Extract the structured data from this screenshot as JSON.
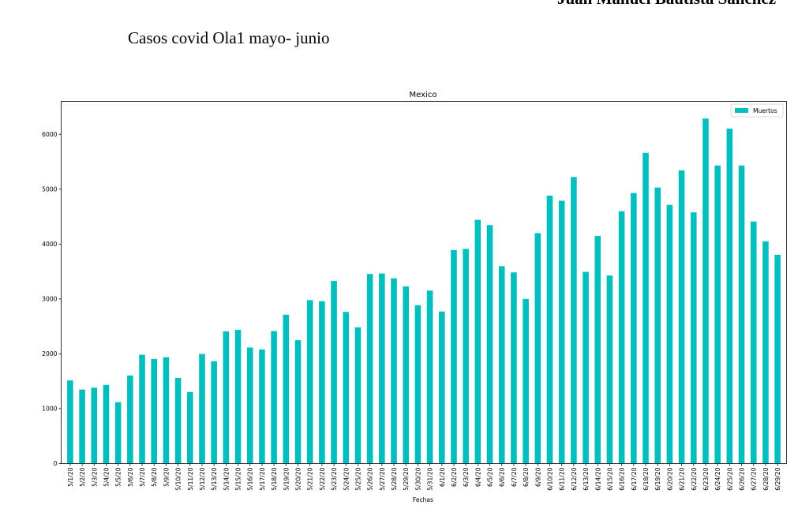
{
  "header": {
    "author": "Juan Manuel Bautista Sánchez",
    "doc_title": "Casos covid Ola1 mayo- junio"
  },
  "colors": {
    "bar": "#00bfbf",
    "axis": "#000000",
    "legend_border": "#cccccc"
  },
  "chart_data": {
    "type": "bar",
    "title": "Mexico",
    "xlabel": "Fechas",
    "ylabel": "",
    "ylim": [
      0,
      6600
    ],
    "yticks": [
      0,
      1000,
      2000,
      3000,
      4000,
      5000,
      6000
    ],
    "grid": false,
    "legend_position": "top-right",
    "categories": [
      "5/1/20",
      "5/2/20",
      "5/3/20",
      "5/4/20",
      "5/5/20",
      "5/6/20",
      "5/7/20",
      "5/8/20",
      "5/9/20",
      "5/10/20",
      "5/11/20",
      "5/12/20",
      "5/13/20",
      "5/14/20",
      "5/15/20",
      "5/16/20",
      "5/17/20",
      "5/18/20",
      "5/19/20",
      "5/20/20",
      "5/21/20",
      "5/22/20",
      "5/23/20",
      "5/24/20",
      "5/25/20",
      "5/26/20",
      "5/27/20",
      "5/28/20",
      "5/29/20",
      "5/30/20",
      "5/31/20",
      "6/1/20",
      "6/2/20",
      "6/3/20",
      "6/4/20",
      "6/5/20",
      "6/6/20",
      "6/7/20",
      "6/8/20",
      "6/9/20",
      "6/10/20",
      "6/11/20",
      "6/12/20",
      "6/13/20",
      "6/14/20",
      "6/15/20",
      "6/16/20",
      "6/17/20",
      "6/18/20",
      "6/19/20",
      "6/20/20",
      "6/21/20",
      "6/22/20",
      "6/23/20",
      "6/24/20",
      "6/25/20",
      "6/26/20",
      "6/27/20",
      "6/28/20",
      "6/29/20"
    ],
    "series": [
      {
        "name": "Muertos",
        "values": [
          1515,
          1349,
          1383,
          1434,
          1119,
          1606,
          1982,
          1906,
          1938,
          1561,
          1305,
          1997,
          1864,
          2409,
          2437,
          2115,
          2079,
          2414,
          2713,
          2248,
          2978,
          2960,
          3329,
          2764,
          2483,
          3455,
          3464,
          3377,
          3227,
          2885,
          3152,
          2771,
          3891,
          3912,
          4442,
          4346,
          3597,
          3484,
          3000,
          4199,
          4883,
          4790,
          5222,
          3494,
          4147,
          3427,
          4599,
          4930,
          5662,
          5030,
          4714,
          5343,
          4577,
          6288,
          5432,
          6104,
          5432,
          4410,
          4050,
          3805
        ]
      }
    ]
  }
}
